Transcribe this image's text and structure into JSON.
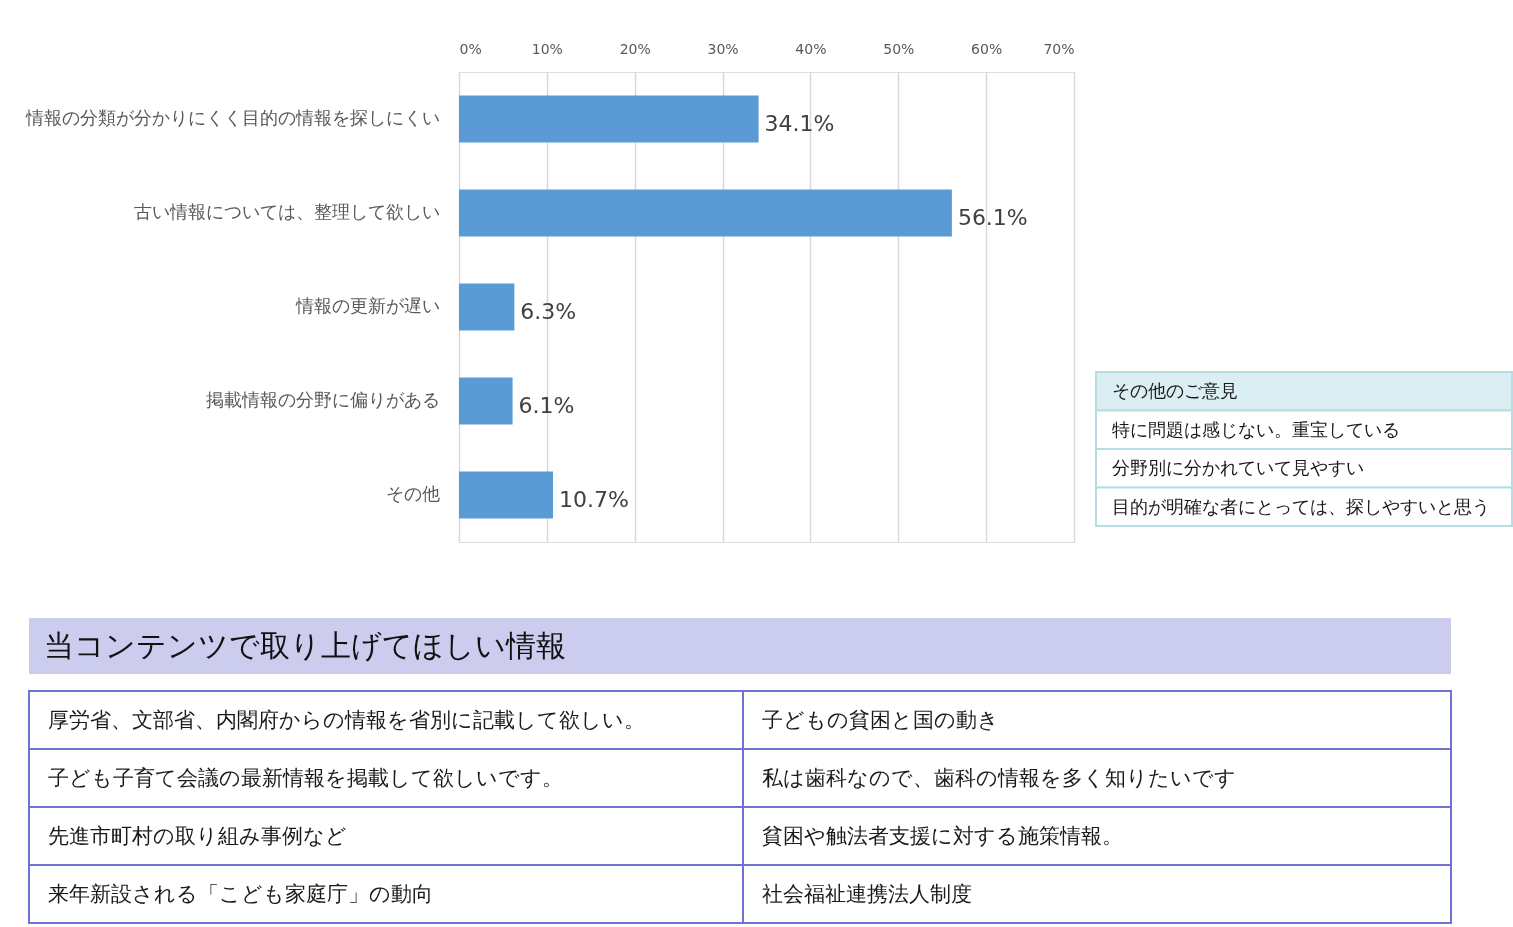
{
  "chart_data": [
    {
      "type": "bar",
      "orientation": "horizontal",
      "categories": [
        "情報の分類が分かりにくく目的の情報を探しにくい",
        "古い情報については、整理して欲しい",
        "情報の更新が遅い",
        "掲載情報の分野に偏りがある",
        "その他"
      ],
      "values": [
        34.1,
        56.1,
        6.3,
        6.1,
        10.7
      ],
      "value_labels": [
        "34.1%",
        "56.1%",
        "6.3%",
        "6.1%",
        "10.7%"
      ],
      "color": "#5b9bd5",
      "xlim": [
        0,
        70
      ],
      "xticks": [
        {
          "value": 0,
          "label": "0%"
        },
        {
          "value": 10,
          "label": "10%"
        },
        {
          "value": 20,
          "label": "20%"
        },
        {
          "value": 30,
          "label": "30%"
        },
        {
          "value": 40,
          "label": "40%"
        },
        {
          "value": 50,
          "label": "50%"
        },
        {
          "value": 60,
          "label": "60%"
        },
        {
          "value": 70,
          "label": "70%"
        }
      ],
      "grid": "x"
    },
    {
      "type": "other",
      "title": "その他のご意見",
      "annotations": [
        "特に問題は感じない。重宝している",
        "分野別に分かれていて見やすい",
        "目的が明確な者にとっては、探しやすいと思う"
      ]
    },
    {
      "type": "other",
      "title": "当コンテンツで取り上げてほしい情報",
      "annotations": [
        "厚労省、文部省、内閣府からの情報を省別に記載して欲しい。",
        "子どもの貧困と国の動き",
        "子ども子育て会議の最新情報を掲載して欲しいです。",
        "私は歯科なので、歯科の情報を多く知りたいです",
        "先進市町村の取り組み事例など",
        "貧困や触法者支援に対する施策情報。",
        "来年新設される「こども家庭庁」の動向",
        "社会福祉連携法人制度"
      ]
    }
  ]
}
